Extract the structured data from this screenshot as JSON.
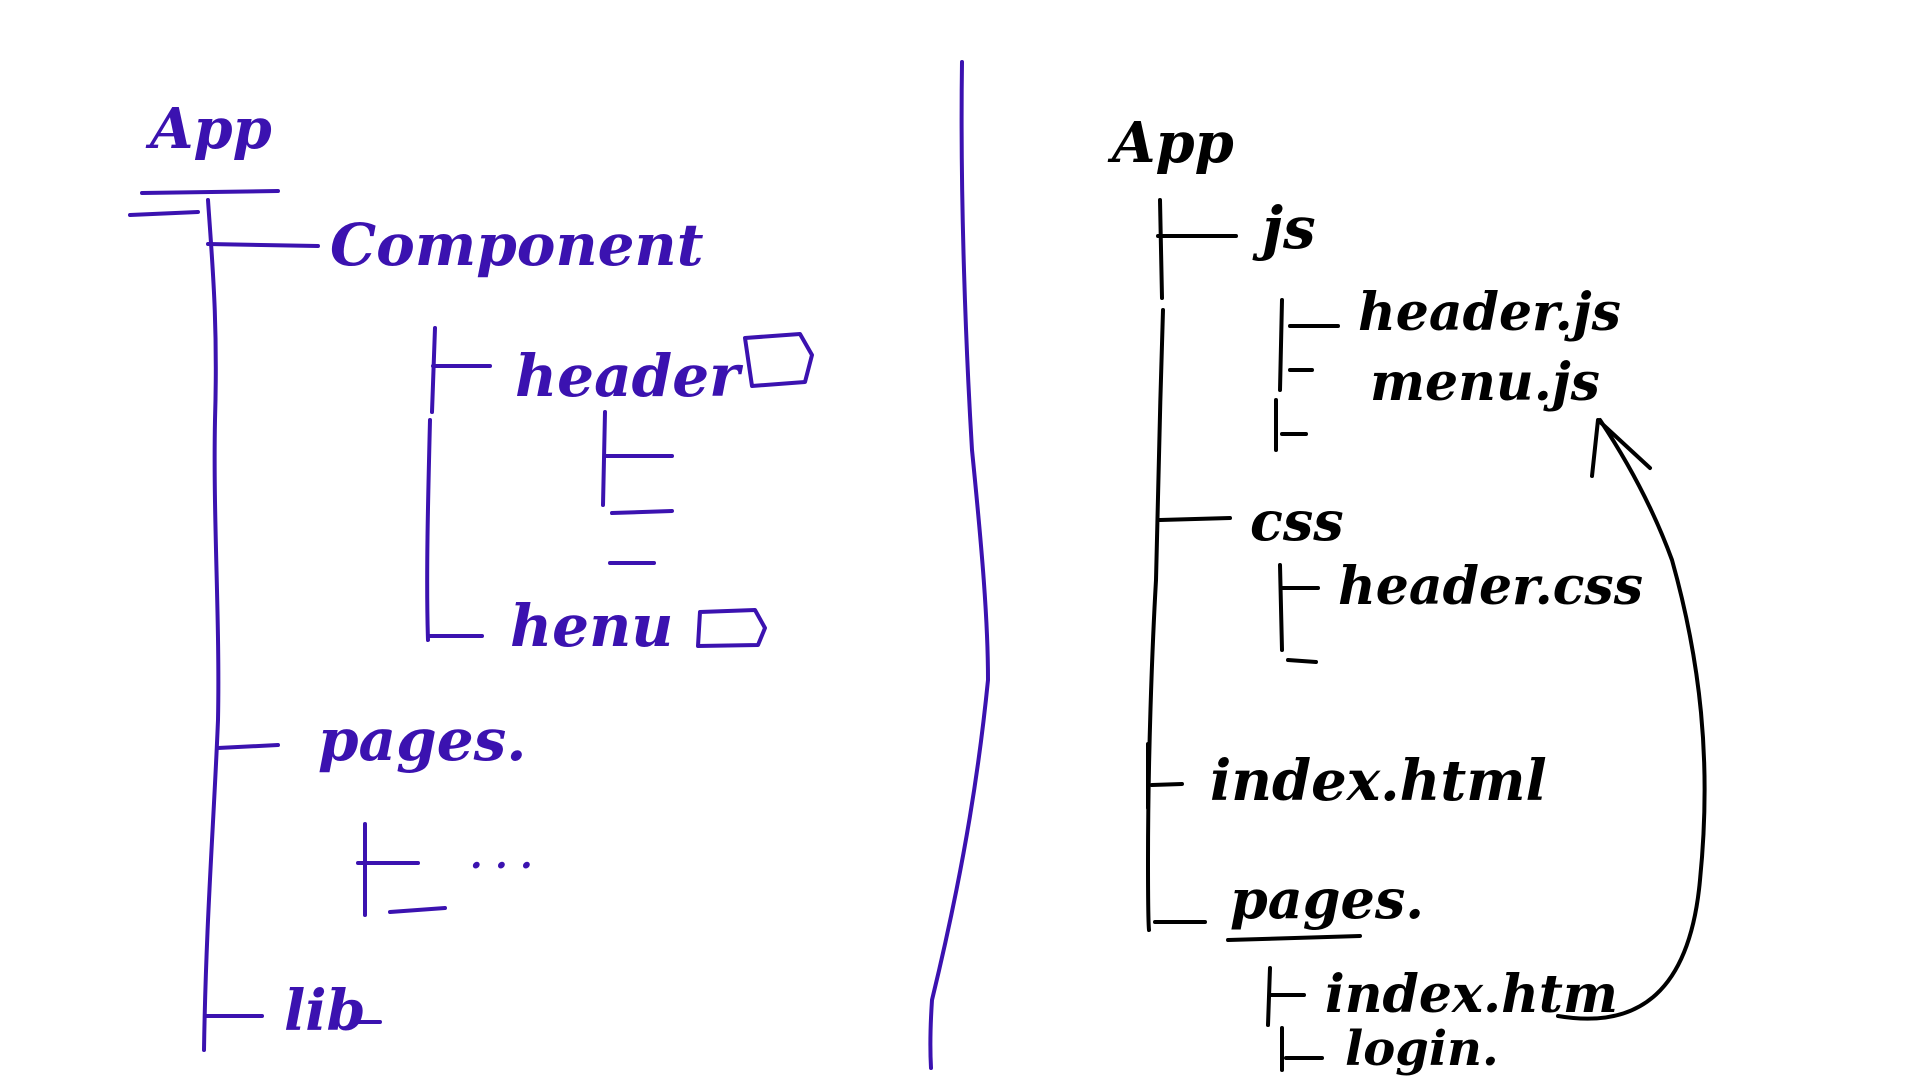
{
  "left_tree": {
    "color": "#3b12b0",
    "root": "App",
    "nodes": {
      "component": "Component",
      "header": "header",
      "menu": "henu",
      "pages": "pages.",
      "pages_more": "· · ·",
      "lib": "lib"
    }
  },
  "right_tree": {
    "color": "#000000",
    "root": "App",
    "nodes": {
      "js": "js",
      "header_js": "header.js",
      "menu_js": "menu.js",
      "css": "css",
      "header_css": "header.css",
      "index_html": "index.html",
      "pages": "pages.",
      "pages_index": "index.htm",
      "pages_login": "login."
    }
  }
}
